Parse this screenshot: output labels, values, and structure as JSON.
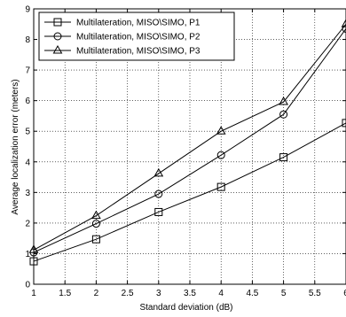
{
  "chart_data": {
    "type": "line",
    "title": "",
    "xlabel": "Standard deviation (dB)",
    "ylabel": "Average localization error (meters)",
    "xlim": [
      1,
      6
    ],
    "ylim": [
      0,
      9
    ],
    "xticks": [
      "1",
      "1.5",
      "2",
      "2.5",
      "3",
      "3.5",
      "4",
      "4.5",
      "5",
      "5.5",
      "6"
    ],
    "yticks": [
      "0",
      "1",
      "2",
      "3",
      "4",
      "5",
      "6",
      "7",
      "8",
      "9"
    ],
    "grid": true,
    "legend_position": "top-left",
    "x": [
      1,
      2,
      3,
      4,
      5,
      6
    ],
    "series": [
      {
        "name": "Multilateration, MISO\\SIMO, P1",
        "marker": "square",
        "values": [
          0.75,
          1.47,
          2.36,
          3.18,
          4.15,
          5.27
        ]
      },
      {
        "name": "Multilateration, MISO\\SIMO, P2",
        "marker": "circle",
        "values": [
          1.04,
          1.98,
          2.95,
          4.22,
          5.55,
          8.35
        ]
      },
      {
        "name": "Multilateration, MISO\\SIMO, P3",
        "marker": "triangle",
        "values": [
          1.12,
          2.24,
          3.62,
          5.0,
          5.96,
          8.5
        ]
      }
    ]
  }
}
